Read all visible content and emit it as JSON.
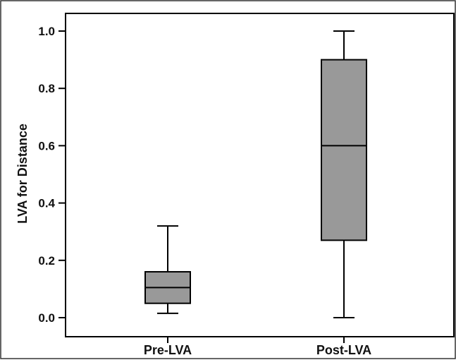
{
  "chart_data": {
    "type": "boxplot",
    "title": "",
    "xlabel": "",
    "ylabel": "LVA for Distance",
    "ylim": [
      0.0,
      1.0
    ],
    "yticks": [
      "0.0",
      "0.2",
      "0.4",
      "0.6",
      "0.8",
      "1.0"
    ],
    "categories": [
      "Pre-LVA",
      "Post-LVA"
    ],
    "boxes": [
      {
        "category": "Pre-LVA",
        "min": 0.015,
        "q1": 0.05,
        "median": 0.105,
        "q3": 0.16,
        "max": 0.32
      },
      {
        "category": "Post-LVA",
        "min": 0.0,
        "q1": 0.27,
        "median": 0.6,
        "q3": 0.9,
        "max": 1.0
      }
    ],
    "grid": false,
    "legend": "none",
    "box_fill": "#999999",
    "line_color": "#000000"
  }
}
